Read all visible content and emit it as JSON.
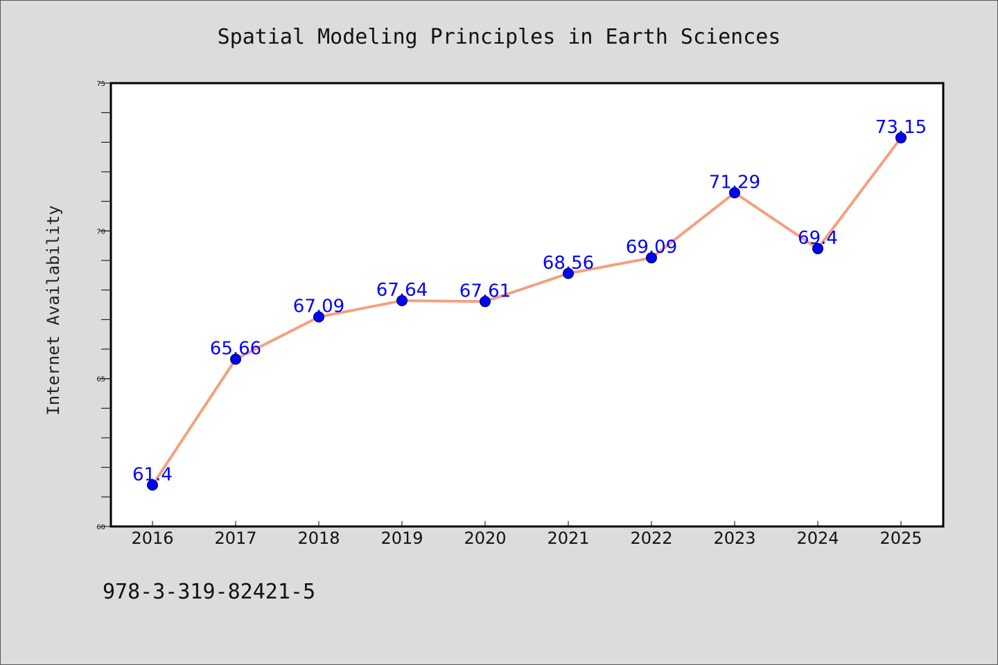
{
  "chart_data": {
    "type": "line",
    "title": "Spatial Modeling Principles in Earth Sciences",
    "xlabel": "",
    "ylabel": "Internet Availability",
    "categories": [
      "2016",
      "2017",
      "2018",
      "2019",
      "2020",
      "2021",
      "2022",
      "2023",
      "2024",
      "2025"
    ],
    "series": [
      {
        "values": [
          61.4,
          65.66,
          67.09,
          67.64,
          67.61,
          68.56,
          69.09,
          71.29,
          69.4,
          73.15
        ]
      }
    ],
    "data_labels": [
      "61.4",
      "65.66",
      "67.09",
      "67.64",
      "67.61",
      "68.56",
      "69.09",
      "71.29",
      "69.4",
      "73.15"
    ],
    "ylim": [
      60,
      75
    ],
    "yticks": [
      "60",
      "65",
      "70",
      "75"
    ],
    "minor_tick_step": 1,
    "grid": false,
    "legend": "none",
    "colors": {
      "background": "#dcdcdc",
      "plot_area": "#ffffff",
      "line": "#f4a07e",
      "marker": "#0000ff",
      "data_label": "#0000ff"
    }
  },
  "footnote": "978-3-319-82421-5"
}
